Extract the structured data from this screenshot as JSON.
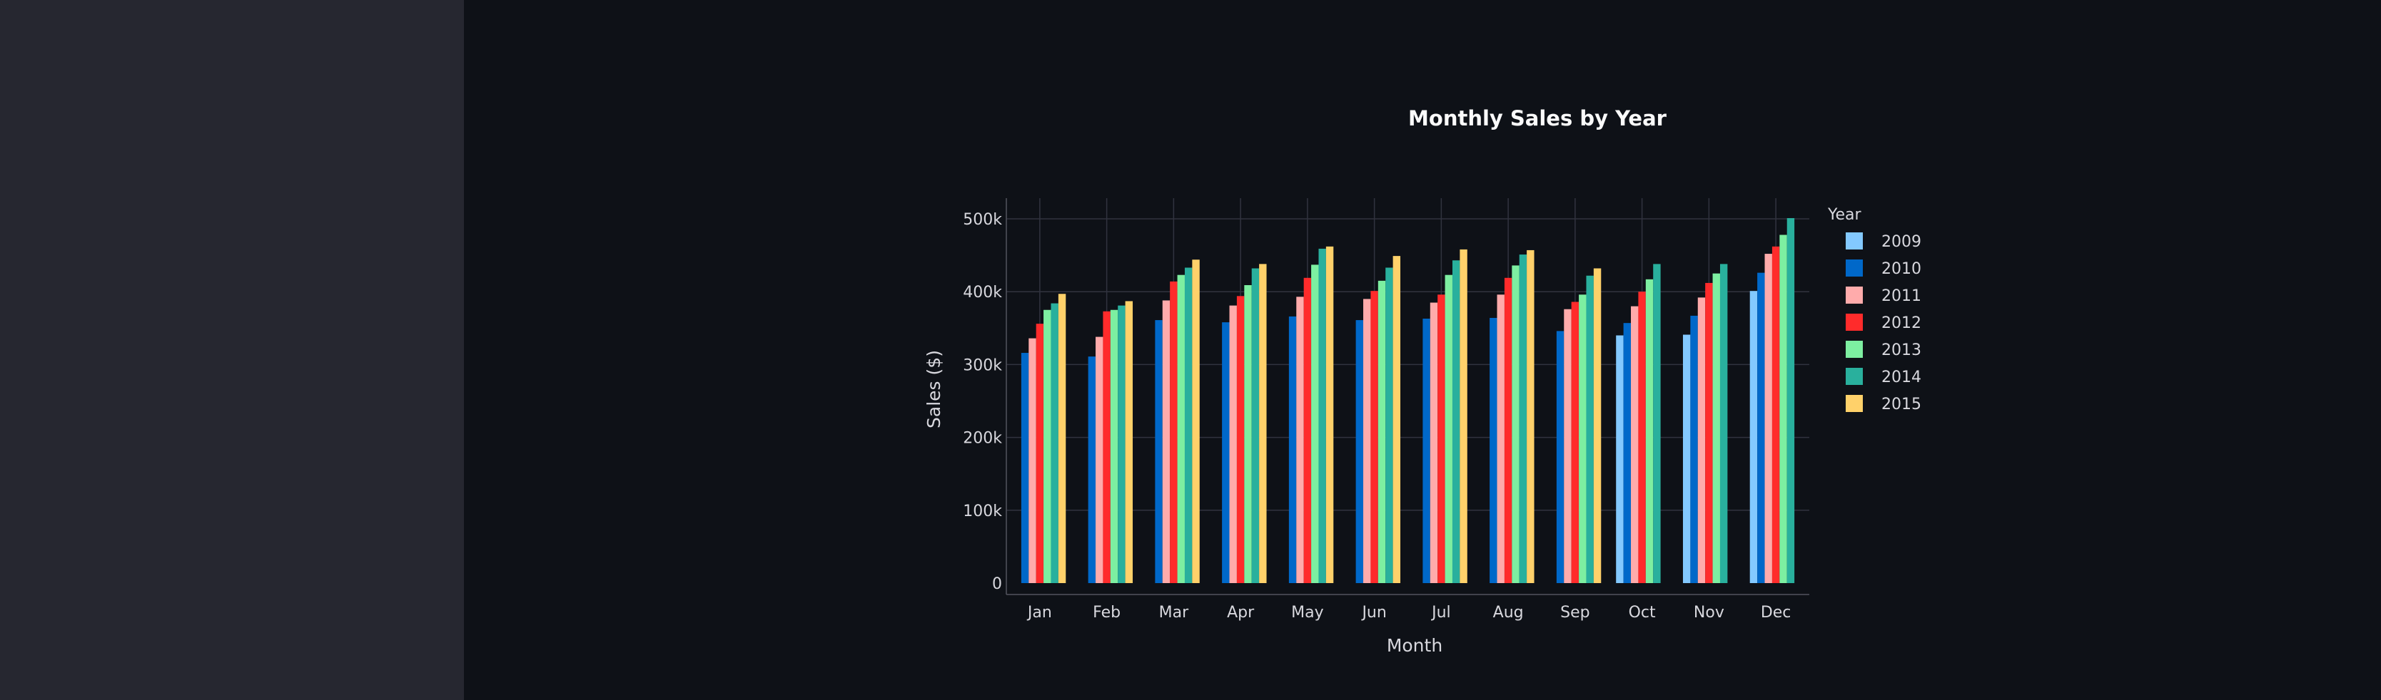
{
  "app": {
    "sidebar_color": "#262730",
    "background_color": "#0e1117"
  },
  "chart_data": {
    "type": "bar",
    "title": "Monthly Sales by Year",
    "xlabel": "Month",
    "ylabel": "Sales ($)",
    "ylim": [
      0,
      520000
    ],
    "yticks": [
      0,
      100000,
      200000,
      300000,
      400000,
      500000
    ],
    "ytick_labels": [
      "0",
      "100k",
      "200k",
      "300k",
      "400k",
      "500k"
    ],
    "grid": true,
    "legend_title": "Year",
    "legend_position": "right",
    "categories": [
      "Jan",
      "Feb",
      "Mar",
      "Apr",
      "May",
      "Jun",
      "Jul",
      "Aug",
      "Sep",
      "Oct",
      "Nov",
      "Dec"
    ],
    "series": [
      {
        "name": "2009",
        "color": "#83c9ff",
        "values": [
          null,
          null,
          null,
          null,
          null,
          null,
          null,
          null,
          null,
          340000,
          341000,
          401000
        ]
      },
      {
        "name": "2010",
        "color": "#0068c9",
        "values": [
          316000,
          311000,
          361000,
          358000,
          366000,
          361000,
          363000,
          364000,
          346000,
          357000,
          367000,
          426000
        ]
      },
      {
        "name": "2011",
        "color": "#ffabab",
        "values": [
          336000,
          338000,
          388000,
          381000,
          393000,
          390000,
          385000,
          396000,
          376000,
          380000,
          392000,
          452000
        ]
      },
      {
        "name": "2012",
        "color": "#ff2b2b",
        "values": [
          356000,
          373000,
          414000,
          394000,
          419000,
          401000,
          396000,
          419000,
          386000,
          400000,
          412000,
          462000
        ]
      },
      {
        "name": "2013",
        "color": "#7defa1",
        "values": [
          375000,
          375000,
          423000,
          409000,
          437000,
          415000,
          423000,
          436000,
          396000,
          417000,
          425000,
          478000
        ]
      },
      {
        "name": "2014",
        "color": "#29b09d",
        "values": [
          384000,
          381000,
          433000,
          432000,
          459000,
          433000,
          443000,
          451000,
          422000,
          438000,
          438000,
          501000
        ]
      },
      {
        "name": "2015",
        "color": "#ffd16a",
        "values": [
          397000,
          387000,
          444000,
          438000,
          462000,
          449000,
          458000,
          457000,
          432000,
          null,
          null,
          null
        ]
      }
    ]
  }
}
